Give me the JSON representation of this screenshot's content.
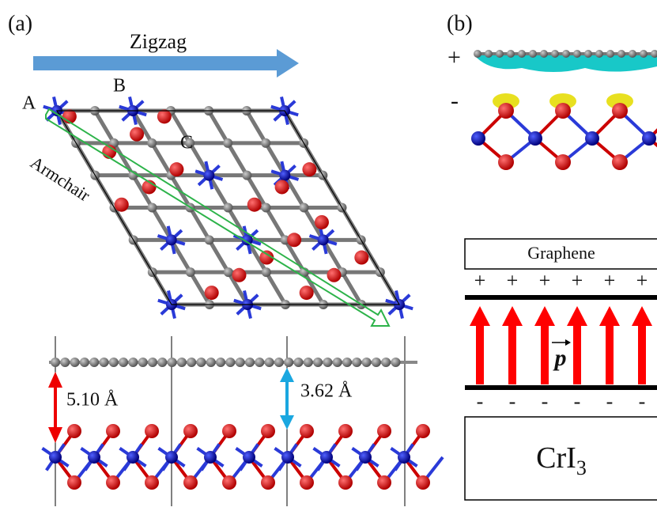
{
  "panel_a": {
    "label": "(a)",
    "direction_zigzag": "Zigzag",
    "sites": [
      "A",
      "B",
      "C"
    ],
    "direction_armchair": "Armchair",
    "distances": [
      "5.10 Å",
      "3.62 Å"
    ]
  },
  "panel_b": {
    "label": "(b)",
    "charge_plus": "+",
    "charge_minus": "-",
    "top_layer": "Graphene",
    "plus_signs": [
      "+",
      "+",
      "+",
      "+",
      "+",
      "+"
    ],
    "minus_signs": [
      "-",
      "-",
      "-",
      "-",
      "-",
      "-"
    ],
    "dipole": "p",
    "bottom_layer": {
      "base": "CrI",
      "subscript": "3"
    }
  }
}
